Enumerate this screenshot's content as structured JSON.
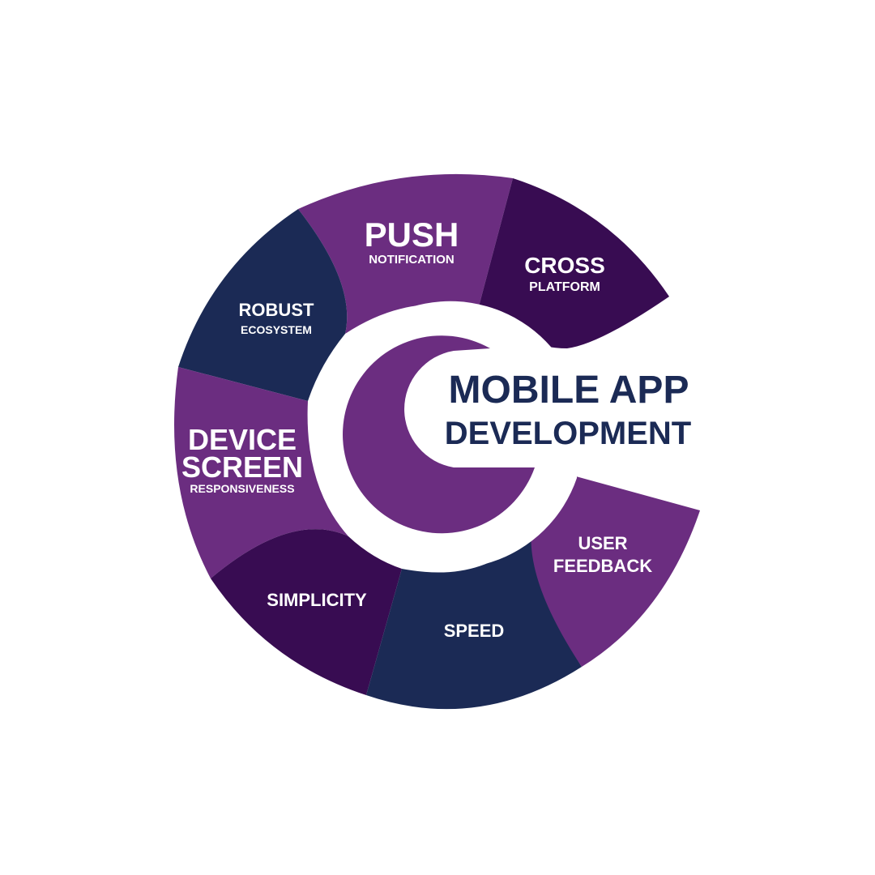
{
  "title": {
    "line1": "MOBILE APP",
    "line2": "DEVELOPMENT"
  },
  "segments": {
    "push": {
      "main": "PUSH",
      "sub": "NOTIFICATION"
    },
    "cross": {
      "main": "CROSS",
      "sub": "PLATFORM"
    },
    "user_feedback": {
      "line1": "USER",
      "line2": "FEEDBACK"
    },
    "speed": {
      "main": "SPEED"
    },
    "simplicity": {
      "main": "SIMPLICITY"
    },
    "device": {
      "line1": "DEVICE",
      "line2": "SCREEN",
      "sub": "RESPONSIVENESS"
    },
    "robust": {
      "main": "ROBUST",
      "sub": "ECOSYSTEM"
    }
  },
  "colors": {
    "purple": "#6b2d80",
    "dark_purple": "#380c52",
    "navy": "#1b2a55",
    "white": "#ffffff"
  }
}
